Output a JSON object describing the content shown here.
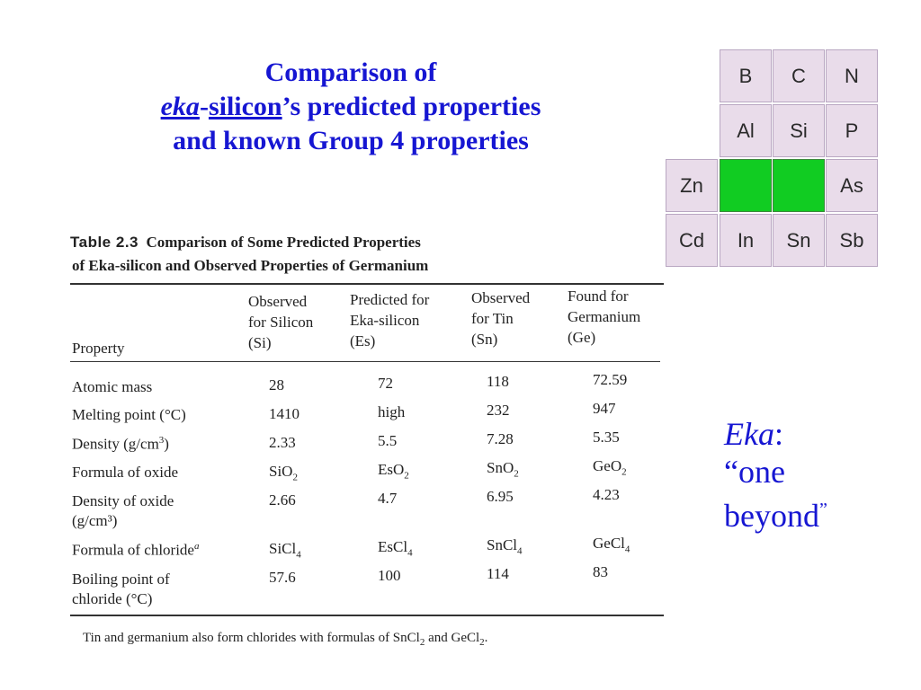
{
  "title": {
    "line1": "Comparison of",
    "eka": "eka",
    "dash": "-",
    "silicon": "silicon",
    "line2_rest": "’s predicted properties",
    "line3": "and known Group 4 properties"
  },
  "periodic_table": {
    "cells": [
      {
        "symbol": "B",
        "color": "#e9dcea"
      },
      {
        "symbol": "C",
        "color": "#e9dcea"
      },
      {
        "symbol": "N",
        "color": "#e9dcea"
      },
      {
        "symbol": "Al",
        "color": "#e9dcea"
      },
      {
        "symbol": "Si",
        "color": "#e9dcea"
      },
      {
        "symbol": "P",
        "color": "#e9dcea"
      },
      {
        "symbol": "Zn",
        "color": "#e9dcea"
      },
      {
        "symbol": "",
        "color": "#11cc22"
      },
      {
        "symbol": "",
        "color": "#11cc22"
      },
      {
        "symbol": "As",
        "color": "#e9dcea"
      },
      {
        "symbol": "Cd",
        "color": "#e9dcea"
      },
      {
        "symbol": "In",
        "color": "#e9dcea"
      },
      {
        "symbol": "Sn",
        "color": "#e9dcea"
      },
      {
        "symbol": "Sb",
        "color": "#e9dcea"
      }
    ]
  },
  "eka_note": {
    "word": "Eka",
    "colon": ":",
    "line2": "“one",
    "line3": "beyond",
    "closing_quote": "”"
  },
  "table": {
    "caption_label": "Table 2.3",
    "caption_line1": "Comparison of Some Predicted Properties",
    "caption_line2": "of Eka-silicon and Observed Properties of Germanium",
    "headers": {
      "property": "Property",
      "silicon": [
        "Observed",
        "for Silicon",
        "(Si)"
      ],
      "eka": [
        "Predicted for",
        "Eka-silicon",
        "(Es)"
      ],
      "tin": [
        "Observed",
        "for Tin",
        "(Sn)"
      ],
      "germanium": [
        "Found for",
        "Germanium",
        "(Ge)"
      ]
    },
    "rows": [
      {
        "property": "Atomic mass",
        "si": "28",
        "es": "72",
        "sn": "118",
        "ge": "72.59"
      },
      {
        "property": "Melting point (°C)",
        "si": "1410",
        "es": "high",
        "sn": "232",
        "ge": "947"
      },
      {
        "property": "Density (g/cm",
        "property_sup": "3",
        "property_end": ")",
        "si": "2.33",
        "es": "5.5",
        "sn": "7.28",
        "ge": "5.35"
      },
      {
        "property": "Formula of oxide",
        "si": "SiO",
        "si_sub": "2",
        "es": "EsO",
        "es_sub": "2",
        "sn": "SnO",
        "sn_sub": "2",
        "ge": "GeO",
        "ge_sub": "2"
      },
      {
        "property": "Density of oxide",
        "property_line2": "(g/cm³)",
        "si": "2.66",
        "es": "4.7",
        "sn": "6.95",
        "ge": "4.23"
      },
      {
        "property": "Formula of chloride",
        "property_sup": "a",
        "si": "SiCl",
        "si_sub": "4",
        "es": "EsCl",
        "es_sub": "4",
        "sn": "SnCl",
        "sn_sub": "4",
        "ge": "GeCl",
        "ge_sub": "4"
      },
      {
        "property": "Boiling point of",
        "property_line2": "chloride (°C)",
        "si": "57.6",
        "es": "100",
        "sn": "114",
        "ge": "83"
      }
    ],
    "footnote": {
      "text1": "Tin and germanium also form chlorides with formulas of SnCl",
      "sub1": "2",
      "text2": " and GeCl",
      "sub2": "2",
      "text3": "."
    }
  }
}
